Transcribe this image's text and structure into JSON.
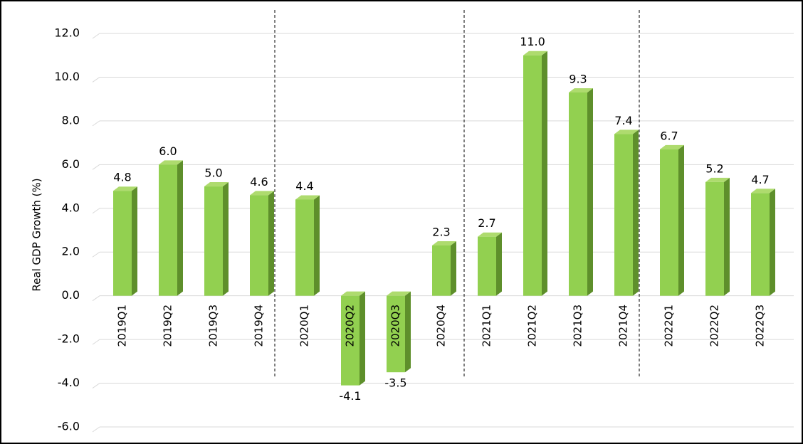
{
  "chart_data": {
    "type": "bar3d",
    "y_label": "Real GDP Growth (%)",
    "categories": [
      "2019Q1",
      "2019Q2",
      "2019Q3",
      "2019Q4",
      "2020Q1",
      "2020Q2",
      "2020Q3",
      "2020Q4",
      "2021Q1",
      "2021Q2",
      "2021Q3",
      "2021Q4",
      "2022Q1",
      "2022Q2",
      "2022Q3"
    ],
    "values": [
      4.8,
      6.0,
      5.0,
      4.6,
      4.4,
      -4.1,
      -3.5,
      2.3,
      2.7,
      11.0,
      9.3,
      7.4,
      6.7,
      5.2,
      4.7
    ],
    "value_labels": [
      "4.8",
      "6.0",
      "5.0",
      "4.6",
      "4.4",
      "-4.1",
      "-3.5",
      "2.3",
      "2.7",
      "11.0",
      "9.3",
      "7.4",
      "6.7",
      "5.2",
      "4.7"
    ],
    "color": "#92d050",
    "ylim": [
      -6,
      12
    ],
    "yticks": [
      {
        "value": -6,
        "label": "-6.0"
      },
      {
        "value": -4,
        "label": "-4.0"
      },
      {
        "value": -2,
        "label": "-2.0"
      },
      {
        "value": 0,
        "label": "0.0"
      },
      {
        "value": 2,
        "label": "2.0"
      },
      {
        "value": 4,
        "label": "4.0"
      },
      {
        "value": 6,
        "label": "6.0"
      },
      {
        "value": 8,
        "label": "8.0"
      },
      {
        "value": 10,
        "label": "10.0"
      },
      {
        "value": 12,
        "label": "12.0"
      }
    ],
    "grid": true
  }
}
